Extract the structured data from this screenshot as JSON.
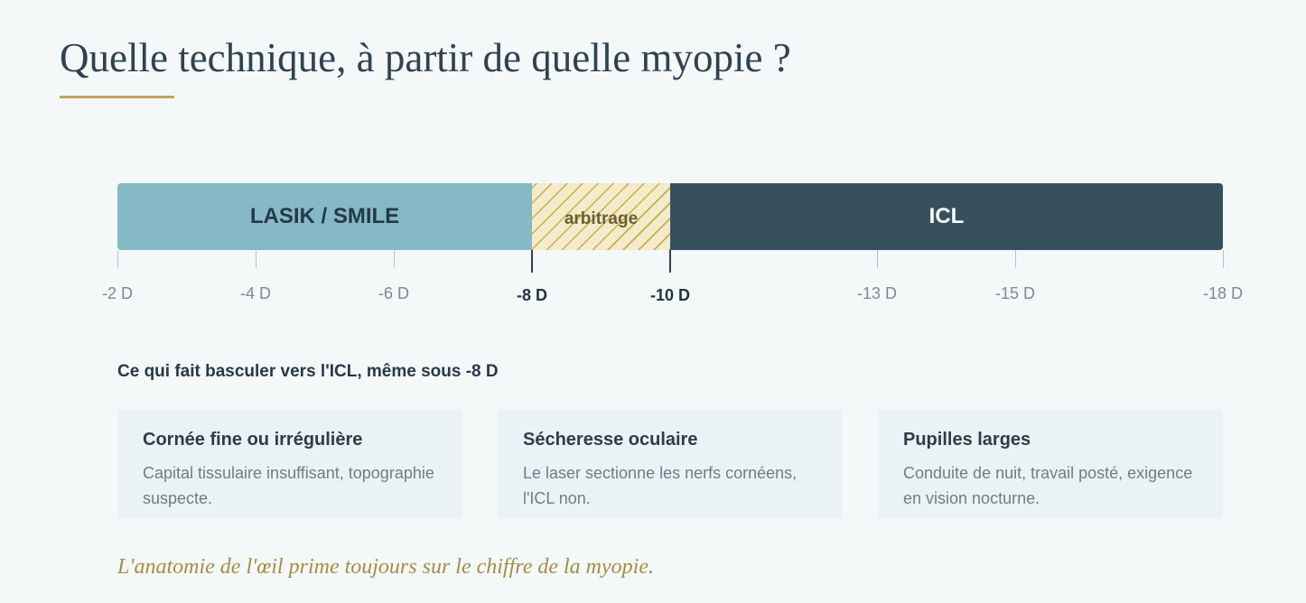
{
  "page": {
    "title": "Quelle technique, à partir de quelle myopie ?"
  },
  "scale": {
    "segments": [
      {
        "label": "LASIK / SMILE",
        "from": "-2 D",
        "to": "-8 D",
        "color": "#84b9c5"
      },
      {
        "label": "arbitrage",
        "from": "-8 D",
        "to": "-10 D",
        "color": "#f3ebc9"
      },
      {
        "label": "ICL",
        "from": "-10 D",
        "to": "-18 D",
        "color": "#37505e"
      }
    ],
    "ticks": [
      {
        "label": "-2 D",
        "value": -2,
        "emphasis": false
      },
      {
        "label": "-4 D",
        "value": -4,
        "emphasis": false
      },
      {
        "label": "-6 D",
        "value": -6,
        "emphasis": false
      },
      {
        "label": "-8 D",
        "value": -8,
        "emphasis": true
      },
      {
        "label": "-10 D",
        "value": -10,
        "emphasis": true
      },
      {
        "label": "-13 D",
        "value": -13,
        "emphasis": false
      },
      {
        "label": "-15 D",
        "value": -15,
        "emphasis": false
      },
      {
        "label": "-18 D",
        "value": -18,
        "emphasis": false
      }
    ]
  },
  "factors": {
    "heading": "Ce qui fait basculer vers l'ICL, même sous -8 D",
    "cards": [
      {
        "title": "Cornée fine ou irrégulière",
        "text": "Capital tissulaire insuffisant, topographie suspecte."
      },
      {
        "title": "Sécheresse oculaire",
        "text": "Le laser sectionne les nerfs cornéens, l'ICL non."
      },
      {
        "title": "Pupilles larges",
        "text": "Conduite de nuit, travail posté, exigence en vision nocturne."
      }
    ]
  },
  "note": "L'anatomie de l'œil prime toujours sur le chiffre de la myopie.",
  "colors": {
    "accent": "#c1a55a",
    "lasik": "#84b9c5",
    "icl": "#37505e",
    "arbitrage_stripe": "#c9ad4d",
    "note": "#a48d45"
  }
}
